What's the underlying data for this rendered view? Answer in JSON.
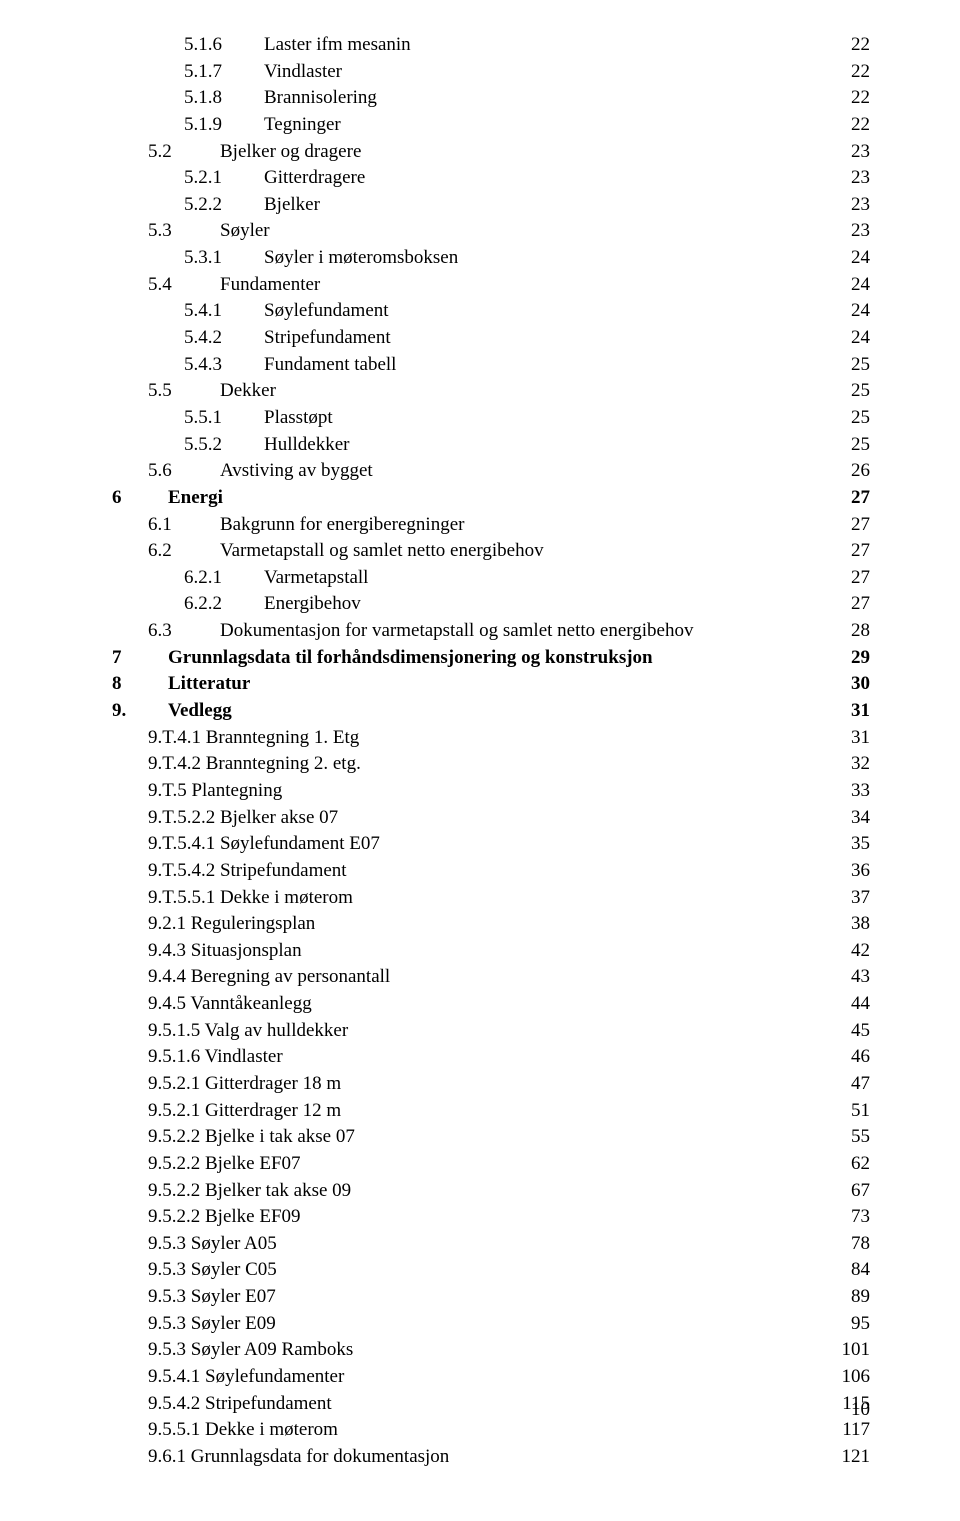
{
  "footer_page_number": "10",
  "entries": [
    {
      "indent": 2,
      "bold": false,
      "num": "5.1.6",
      "label": "Laster ifm mesanin",
      "page": "22",
      "numclass": "num-w-subs"
    },
    {
      "indent": 2,
      "bold": false,
      "num": "5.1.7",
      "label": "Vindlaster",
      "page": "22",
      "numclass": "num-w-subs"
    },
    {
      "indent": 2,
      "bold": false,
      "num": "5.1.8",
      "label": "Brannisolering",
      "page": "22",
      "numclass": "num-w-subs"
    },
    {
      "indent": 2,
      "bold": false,
      "num": "5.1.9",
      "label": "Tegninger",
      "page": "22",
      "numclass": "num-w-subs"
    },
    {
      "indent": 1,
      "bold": false,
      "num": "5.2",
      "label": "Bjelker og dragere",
      "page": "23",
      "numclass": "num-w-sub"
    },
    {
      "indent": 2,
      "bold": false,
      "num": "5.2.1",
      "label": "Gitterdragere",
      "page": "23",
      "numclass": "num-w-subs"
    },
    {
      "indent": 2,
      "bold": false,
      "num": "5.2.2",
      "label": "Bjelker",
      "page": "23",
      "numclass": "num-w-subs"
    },
    {
      "indent": 1,
      "bold": false,
      "num": "5.3",
      "label": "Søyler",
      "page": "23",
      "numclass": "num-w-sub"
    },
    {
      "indent": 2,
      "bold": false,
      "num": "5.3.1",
      "label": "Søyler i møteromsboksen",
      "page": "24",
      "numclass": "num-w-subs"
    },
    {
      "indent": 1,
      "bold": false,
      "num": "5.4",
      "label": "Fundamenter",
      "page": "24",
      "numclass": "num-w-sub"
    },
    {
      "indent": 2,
      "bold": false,
      "num": "5.4.1",
      "label": "Søylefundament",
      "page": "24",
      "numclass": "num-w-subs"
    },
    {
      "indent": 2,
      "bold": false,
      "num": "5.4.2",
      "label": "Stripefundament",
      "page": "24",
      "numclass": "num-w-subs"
    },
    {
      "indent": 2,
      "bold": false,
      "num": "5.4.3",
      "label": "Fundament tabell",
      "page": "25",
      "numclass": "num-w-subs"
    },
    {
      "indent": 1,
      "bold": false,
      "num": "5.5",
      "label": "Dekker",
      "page": "25",
      "numclass": "num-w-sub"
    },
    {
      "indent": 2,
      "bold": false,
      "num": "5.5.1",
      "label": "Plasstøpt",
      "page": "25",
      "numclass": "num-w-subs"
    },
    {
      "indent": 2,
      "bold": false,
      "num": "5.5.2",
      "label": "Hulldekker",
      "page": "25",
      "numclass": "num-w-subs"
    },
    {
      "indent": 1,
      "bold": false,
      "num": "5.6",
      "label": "Avstiving av bygget",
      "page": "26",
      "numclass": "num-w-sub"
    },
    {
      "indent": 0,
      "bold": true,
      "num": "6",
      "label": "Energi",
      "page": "27",
      "numclass": "num-w-sec"
    },
    {
      "indent": 1,
      "bold": false,
      "num": "6.1",
      "label": "Bakgrunn for energiberegninger",
      "page": "27",
      "numclass": "num-w-sub"
    },
    {
      "indent": 1,
      "bold": false,
      "num": "6.2",
      "label": "Varmetapstall og samlet netto energibehov",
      "page": "27",
      "numclass": "num-w-sub"
    },
    {
      "indent": 2,
      "bold": false,
      "num": "6.2.1",
      "label": "Varmetapstall",
      "page": "27",
      "numclass": "num-w-subs"
    },
    {
      "indent": 2,
      "bold": false,
      "num": "6.2.2",
      "label": "Energibehov",
      "page": "27",
      "numclass": "num-w-subs"
    },
    {
      "indent": 1,
      "bold": false,
      "num": "6.3",
      "label": "Dokumentasjon for varmetapstall og samlet netto energibehov",
      "page": "28",
      "numclass": "num-w-sub"
    },
    {
      "indent": 0,
      "bold": true,
      "num": "7",
      "label": "Grunnlagsdata til forhåndsdimensjonering og konstruksjon",
      "page": "29",
      "numclass": "num-w-sec"
    },
    {
      "indent": 0,
      "bold": true,
      "num": "8",
      "label": "Litteratur",
      "page": "30",
      "numclass": "num-w-sec"
    },
    {
      "indent": 0,
      "bold": true,
      "num": "9.",
      "label": "Vedlegg",
      "page": "31",
      "numclass": "num-w-sec"
    },
    {
      "indent": 1,
      "bold": false,
      "num": "",
      "label": "9.T.4.1 Branntegning 1. Etg",
      "page": "31",
      "numclass": ""
    },
    {
      "indent": 1,
      "bold": false,
      "num": "",
      "label": "9.T.4.2 Branntegning 2. etg.",
      "page": "32",
      "numclass": ""
    },
    {
      "indent": 1,
      "bold": false,
      "num": "",
      "label": "9.T.5 Plantegning",
      "page": "33",
      "numclass": ""
    },
    {
      "indent": 1,
      "bold": false,
      "num": "",
      "label": "9.T.5.2.2 Bjelker akse 07",
      "page": "34",
      "numclass": ""
    },
    {
      "indent": 1,
      "bold": false,
      "num": "",
      "label": "9.T.5.4.1 Søylefundament E07",
      "page": "35",
      "numclass": ""
    },
    {
      "indent": 1,
      "bold": false,
      "num": "",
      "label": "9.T.5.4.2 Stripefundament",
      "page": "36",
      "numclass": ""
    },
    {
      "indent": 1,
      "bold": false,
      "num": "",
      "label": "9.T.5.5.1 Dekke i møterom",
      "page": "37",
      "numclass": ""
    },
    {
      "indent": 1,
      "bold": false,
      "num": "",
      "label": "9.2.1 Reguleringsplan",
      "page": "38",
      "numclass": ""
    },
    {
      "indent": 1,
      "bold": false,
      "num": "",
      "label": "9.4.3 Situasjonsplan",
      "page": "42",
      "numclass": ""
    },
    {
      "indent": 1,
      "bold": false,
      "num": "",
      "label": "9.4.4 Beregning av personantall",
      "page": "43",
      "numclass": ""
    },
    {
      "indent": 1,
      "bold": false,
      "num": "",
      "label": "9.4.5 Vanntåkeanlegg",
      "page": "44",
      "numclass": ""
    },
    {
      "indent": 1,
      "bold": false,
      "num": "",
      "label": "9.5.1.5 Valg av hulldekker",
      "page": "45",
      "numclass": ""
    },
    {
      "indent": 1,
      "bold": false,
      "num": "",
      "label": "9.5.1.6 Vindlaster",
      "page": "46",
      "numclass": ""
    },
    {
      "indent": 1,
      "bold": false,
      "num": "",
      "label": "9.5.2.1 Gitterdrager 18 m",
      "page": "47",
      "numclass": ""
    },
    {
      "indent": 1,
      "bold": false,
      "num": "",
      "label": "9.5.2.1 Gitterdrager 12 m",
      "page": "51",
      "numclass": ""
    },
    {
      "indent": 1,
      "bold": false,
      "num": "",
      "label": "9.5.2.2 Bjelke i tak akse 07",
      "page": "55",
      "numclass": ""
    },
    {
      "indent": 1,
      "bold": false,
      "num": "",
      "label": "9.5.2.2  Bjelke EF07",
      "page": "62",
      "numclass": ""
    },
    {
      "indent": 1,
      "bold": false,
      "num": "",
      "label": "9.5.2.2 Bjelker tak akse 09",
      "page": "67",
      "numclass": ""
    },
    {
      "indent": 1,
      "bold": false,
      "num": "",
      "label": "9.5.2.2 Bjelke EF09",
      "page": "73",
      "numclass": ""
    },
    {
      "indent": 1,
      "bold": false,
      "num": "",
      "label": "9.5.3 Søyler A05",
      "page": "78",
      "numclass": ""
    },
    {
      "indent": 1,
      "bold": false,
      "num": "",
      "label": "9.5.3 Søyler C05",
      "page": "84",
      "numclass": ""
    },
    {
      "indent": 1,
      "bold": false,
      "num": "",
      "label": "9.5.3 Søyler E07",
      "page": "89",
      "numclass": ""
    },
    {
      "indent": 1,
      "bold": false,
      "num": "",
      "label": "9.5.3 Søyler E09",
      "page": "95",
      "numclass": ""
    },
    {
      "indent": 1,
      "bold": false,
      "num": "",
      "label": "9.5.3 Søyler A09 Ramboks",
      "page": "101",
      "numclass": ""
    },
    {
      "indent": 1,
      "bold": false,
      "num": "",
      "label": "9.5.4.1 Søylefundamenter",
      "page": "106",
      "numclass": ""
    },
    {
      "indent": 1,
      "bold": false,
      "num": "",
      "label": "9.5.4.2 Stripefundament",
      "page": "115",
      "numclass": ""
    },
    {
      "indent": 1,
      "bold": false,
      "num": "",
      "label": "9.5.5.1 Dekke i møterom",
      "page": "117",
      "numclass": ""
    },
    {
      "indent": 1,
      "bold": false,
      "num": "",
      "label": "9.6.1 Grunnlagsdata for dokumentasjon",
      "page": "121",
      "numclass": ""
    }
  ]
}
